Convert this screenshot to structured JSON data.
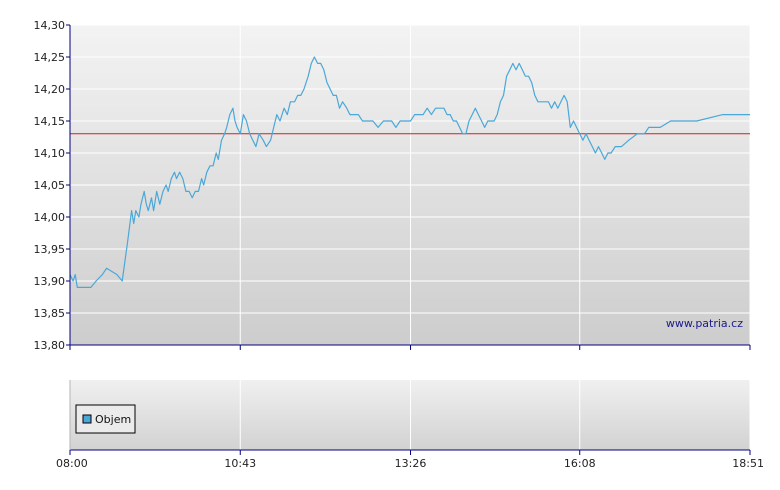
{
  "chart_data": [
    {
      "type": "line",
      "title": "",
      "xlabel": "",
      "ylabel": "",
      "ylim": [
        13.8,
        14.3
      ],
      "y_ticks": [
        "14,30",
        "14,25",
        "14,20",
        "14,15",
        "14,10",
        "14,05",
        "14,00",
        "13,95",
        "13,90",
        "13,85",
        "13,80"
      ],
      "y_tick_values": [
        14.3,
        14.25,
        14.2,
        14.15,
        14.1,
        14.05,
        14.0,
        13.95,
        13.9,
        13.85,
        13.8
      ],
      "x_ticks": [
        "08:00",
        "10:43",
        "13:26",
        "16:08",
        "18:51"
      ],
      "xlim": [
        "08:00",
        "18:51"
      ],
      "grid": true,
      "reference_line": {
        "value": 14.13,
        "color": "#cc2222"
      },
      "series": [
        {
          "color": "#4aa8d8",
          "points": [
            [
              "08:00",
              13.91
            ],
            [
              "08:03",
              13.9
            ],
            [
              "08:05",
              13.91
            ],
            [
              "08:07",
              13.89
            ],
            [
              "08:15",
              13.89
            ],
            [
              "08:20",
              13.89
            ],
            [
              "08:25",
              13.9
            ],
            [
              "08:31",
              13.91
            ],
            [
              "08:35",
              13.92
            ],
            [
              "08:45",
              13.91
            ],
            [
              "08:50",
              13.9
            ],
            [
              "08:55",
              13.96
            ],
            [
              "08:59",
              14.01
            ],
            [
              "09:01",
              13.99
            ],
            [
              "09:03",
              14.01
            ],
            [
              "09:06",
              14.0
            ],
            [
              "09:08",
              14.02
            ],
            [
              "09:11",
              14.04
            ],
            [
              "09:13",
              14.02
            ],
            [
              "09:15",
              14.01
            ],
            [
              "09:18",
              14.03
            ],
            [
              "09:20",
              14.01
            ],
            [
              "09:23",
              14.04
            ],
            [
              "09:26",
              14.02
            ],
            [
              "09:29",
              14.04
            ],
            [
              "09:32",
              14.05
            ],
            [
              "09:34",
              14.04
            ],
            [
              "09:37",
              14.06
            ],
            [
              "09:40",
              14.07
            ],
            [
              "09:42",
              14.06
            ],
            [
              "09:45",
              14.07
            ],
            [
              "09:48",
              14.06
            ],
            [
              "09:51",
              14.04
            ],
            [
              "09:54",
              14.04
            ],
            [
              "09:57",
              14.03
            ],
            [
              "10:00",
              14.04
            ],
            [
              "10:03",
              14.04
            ],
            [
              "10:06",
              14.06
            ],
            [
              "10:08",
              14.05
            ],
            [
              "10:11",
              14.07
            ],
            [
              "10:14",
              14.08
            ],
            [
              "10:17",
              14.08
            ],
            [
              "10:20",
              14.1
            ],
            [
              "10:22",
              14.09
            ],
            [
              "10:25",
              14.12
            ],
            [
              "10:28",
              14.13
            ],
            [
              "10:30",
              14.14
            ],
            [
              "10:33",
              14.16
            ],
            [
              "10:36",
              14.17
            ],
            [
              "10:38",
              14.15
            ],
            [
              "10:40",
              14.14
            ],
            [
              "10:43",
              14.13
            ],
            [
              "10:46",
              14.16
            ],
            [
              "10:49",
              14.15
            ],
            [
              "10:52",
              14.13
            ],
            [
              "10:55",
              14.12
            ],
            [
              "10:58",
              14.11
            ],
            [
              "11:01",
              14.13
            ],
            [
              "11:05",
              14.12
            ],
            [
              "11:08",
              14.11
            ],
            [
              "11:12",
              14.12
            ],
            [
              "11:15",
              14.14
            ],
            [
              "11:18",
              14.16
            ],
            [
              "11:21",
              14.15
            ],
            [
              "11:25",
              14.17
            ],
            [
              "11:28",
              14.16
            ],
            [
              "11:31",
              14.18
            ],
            [
              "11:35",
              14.18
            ],
            [
              "11:38",
              14.19
            ],
            [
              "11:41",
              14.19
            ],
            [
              "11:44",
              14.2
            ],
            [
              "11:48",
              14.22
            ],
            [
              "11:51",
              14.24
            ],
            [
              "11:54",
              14.25
            ],
            [
              "11:57",
              14.24
            ],
            [
              "12:00",
              14.24
            ],
            [
              "12:03",
              14.23
            ],
            [
              "12:06",
              14.21
            ],
            [
              "12:09",
              14.2
            ],
            [
              "12:12",
              14.19
            ],
            [
              "12:15",
              14.19
            ],
            [
              "12:18",
              14.17
            ],
            [
              "12:21",
              14.18
            ],
            [
              "12:25",
              14.17
            ],
            [
              "12:28",
              14.16
            ],
            [
              "12:32",
              14.16
            ],
            [
              "12:36",
              14.16
            ],
            [
              "12:40",
              14.15
            ],
            [
              "12:45",
              14.15
            ],
            [
              "12:50",
              14.15
            ],
            [
              "12:55",
              14.14
            ],
            [
              "13:00",
              14.15
            ],
            [
              "13:04",
              14.15
            ],
            [
              "13:08",
              14.15
            ],
            [
              "13:12",
              14.14
            ],
            [
              "13:16",
              14.15
            ],
            [
              "13:20",
              14.15
            ],
            [
              "13:26",
              14.15
            ],
            [
              "13:30",
              14.16
            ],
            [
              "13:34",
              14.16
            ],
            [
              "13:38",
              14.16
            ],
            [
              "13:42",
              14.17
            ],
            [
              "13:46",
              14.16
            ],
            [
              "13:50",
              14.17
            ],
            [
              "13:54",
              14.17
            ],
            [
              "13:58",
              14.17
            ],
            [
              "14:01",
              14.16
            ],
            [
              "14:04",
              14.16
            ],
            [
              "14:07",
              14.15
            ],
            [
              "14:10",
              14.15
            ],
            [
              "14:13",
              14.14
            ],
            [
              "14:16",
              14.13
            ],
            [
              "14:19",
              14.13
            ],
            [
              "14:22",
              14.15
            ],
            [
              "14:25",
              14.16
            ],
            [
              "14:28",
              14.17
            ],
            [
              "14:31",
              14.16
            ],
            [
              "14:34",
              14.15
            ],
            [
              "14:37",
              14.14
            ],
            [
              "14:40",
              14.15
            ],
            [
              "14:43",
              14.15
            ],
            [
              "14:46",
              14.15
            ],
            [
              "14:49",
              14.16
            ],
            [
              "14:52",
              14.18
            ],
            [
              "14:55",
              14.19
            ],
            [
              "14:58",
              14.22
            ],
            [
              "15:01",
              14.23
            ],
            [
              "15:04",
              14.24
            ],
            [
              "15:07",
              14.23
            ],
            [
              "15:10",
              14.24
            ],
            [
              "15:13",
              14.23
            ],
            [
              "15:16",
              14.22
            ],
            [
              "15:19",
              14.22
            ],
            [
              "15:22",
              14.21
            ],
            [
              "15:25",
              14.19
            ],
            [
              "15:28",
              14.18
            ],
            [
              "15:31",
              14.18
            ],
            [
              "15:35",
              14.18
            ],
            [
              "15:38",
              14.18
            ],
            [
              "15:41",
              14.17
            ],
            [
              "15:44",
              14.18
            ],
            [
              "15:47",
              14.17
            ],
            [
              "15:50",
              14.18
            ],
            [
              "15:53",
              14.19
            ],
            [
              "15:56",
              14.18
            ],
            [
              "15:59",
              14.14
            ],
            [
              "16:02",
              14.15
            ],
            [
              "16:05",
              14.14
            ],
            [
              "16:08",
              14.13
            ],
            [
              "16:11",
              14.12
            ],
            [
              "16:14",
              14.13
            ],
            [
              "16:17",
              14.12
            ],
            [
              "16:20",
              14.11
            ],
            [
              "16:23",
              14.1
            ],
            [
              "16:26",
              14.11
            ],
            [
              "16:29",
              14.1
            ],
            [
              "16:32",
              14.09
            ],
            [
              "16:35",
              14.1
            ],
            [
              "16:38",
              14.1
            ],
            [
              "16:42",
              14.11
            ],
            [
              "16:48",
              14.11
            ],
            [
              "16:55",
              14.12
            ],
            [
              "17:03",
              14.13
            ],
            [
              "17:10",
              14.13
            ],
            [
              "17:14",
              14.14
            ],
            [
              "17:25",
              14.14
            ],
            [
              "17:35",
              14.15
            ],
            [
              "18:00",
              14.15
            ],
            [
              "18:25",
              14.16
            ],
            [
              "18:51",
              14.16
            ]
          ]
        }
      ]
    },
    {
      "type": "bar",
      "x_ticks": [
        "08:00",
        "10:43",
        "13:26",
        "16:08",
        "18:51"
      ],
      "grid": true,
      "legend": {
        "position": "left",
        "entries": [
          {
            "label": "Objem",
            "color": "#4aa8d8"
          }
        ]
      },
      "series": []
    }
  ],
  "watermark": "www.patria.cz",
  "colors": {
    "line": "#4aa8d8",
    "reference": "#cc2222",
    "grid": "#ffffff",
    "axis": "#000080",
    "plot_top": "#f2f2f2",
    "plot_bottom": "#cfcfcf"
  }
}
